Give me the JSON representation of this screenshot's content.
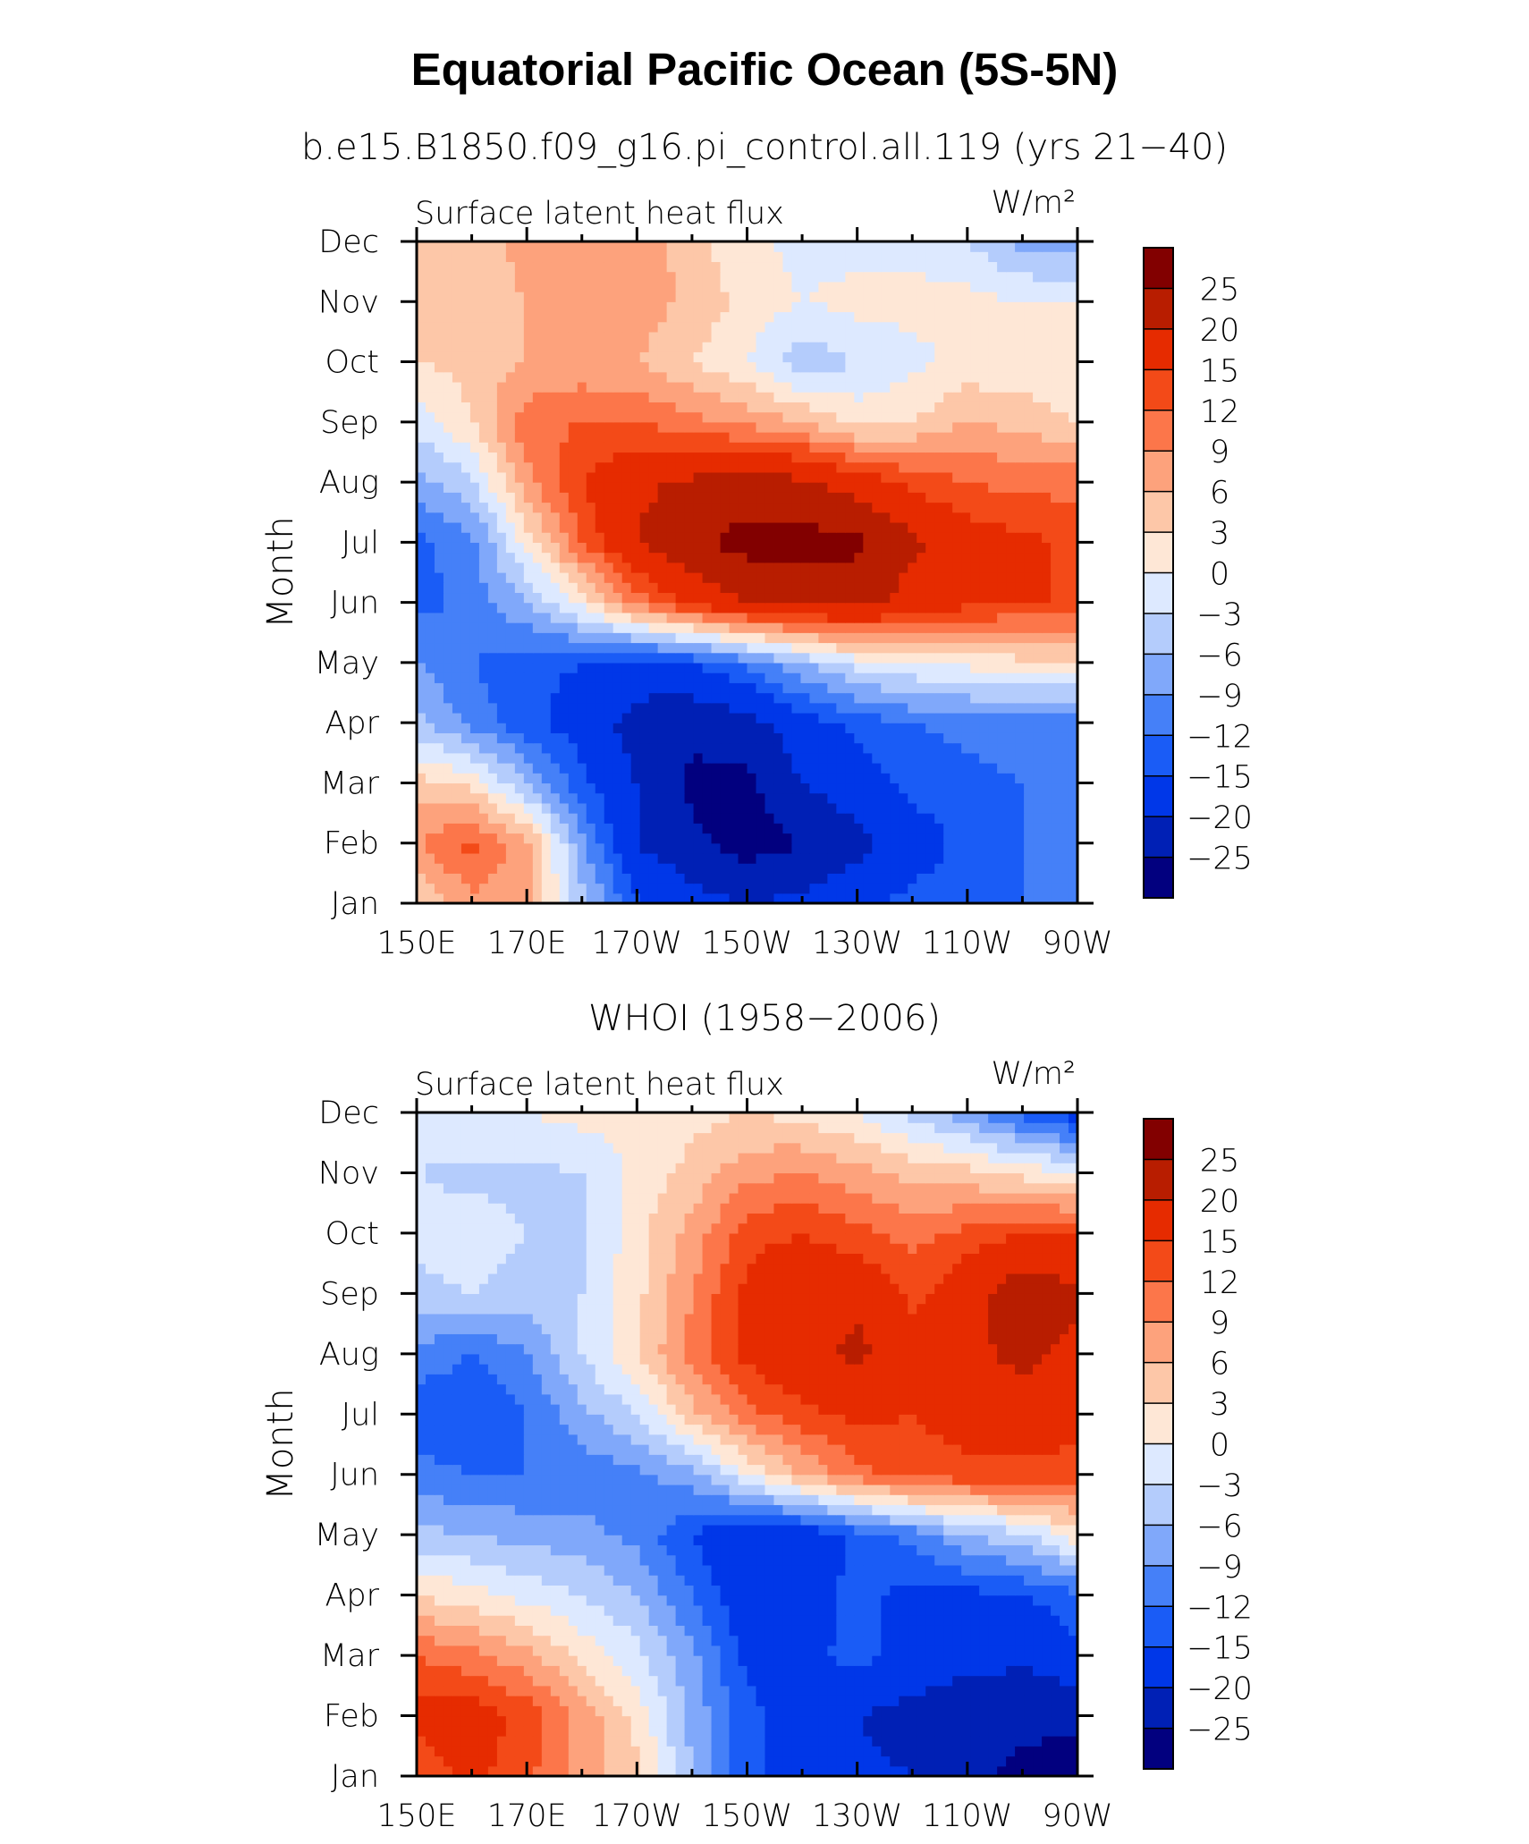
{
  "figure": {
    "title": "Equatorial Pacific Ocean (5S-5N)"
  },
  "chart_data": [
    {
      "type": "heatmap",
      "title": "b.e15.B1850.f09_g16.pi_control.all.119 (yrs 21−40)",
      "left_label": "Surface latent heat flux",
      "units": "W/m²",
      "ylabel": "Month",
      "xlabel": "",
      "x_ticks": [
        "150E",
        "170E",
        "170W",
        "150W",
        "130W",
        "110W",
        "90W"
      ],
      "y_ticks": [
        "Jan",
        "Feb",
        "Mar",
        "Apr",
        "May",
        "Jun",
        "Jul",
        "Aug",
        "Sep",
        "Oct",
        "Nov",
        "Dec"
      ],
      "x": [
        150,
        160,
        170,
        180,
        190,
        200,
        210,
        220,
        230,
        240,
        250,
        260,
        270
      ],
      "y": [
        1,
        2,
        3,
        4,
        5,
        6,
        7,
        8,
        9,
        10,
        11,
        12
      ],
      "z": [
        [
          3,
          8,
          7,
          -5,
          -14,
          -18,
          -20,
          -19,
          -16,
          -14,
          -13,
          -12,
          -12
        ],
        [
          9,
          13,
          7,
          -8,
          -20,
          -24,
          -27,
          -25,
          -22,
          -17,
          -14,
          -12,
          -12
        ],
        [
          4,
          2,
          -6,
          -14,
          -20,
          -26,
          -26,
          -20,
          -17,
          -14,
          -13,
          -12,
          -11
        ],
        [
          -5,
          -10,
          -14,
          -17,
          -22,
          -24,
          -22,
          -17,
          -14,
          -12,
          -11,
          -10,
          -10
        ],
        [
          -9,
          -12,
          -14,
          -15,
          -17,
          -15,
          -11,
          -6,
          -2,
          0,
          1,
          2,
          2
        ],
        [
          -13,
          -11,
          -6,
          1,
          10,
          16,
          20,
          21,
          22,
          18,
          16,
          15,
          15
        ],
        [
          -13,
          -10,
          1,
          12,
          20,
          24,
          27,
          27,
          26,
          21,
          17,
          16,
          14
        ],
        [
          -7,
          -4,
          8,
          15,
          19,
          21,
          22,
          21,
          18,
          14,
          12,
          11,
          11
        ],
        [
          -2,
          3,
          11,
          12,
          12,
          10,
          8,
          6,
          2,
          3,
          6,
          5,
          3
        ],
        [
          3,
          4,
          6,
          7,
          6,
          3,
          0,
          -5,
          -3,
          -1,
          1,
          1,
          0
        ],
        [
          5,
          5,
          6,
          7,
          8,
          5,
          2,
          0,
          1,
          1,
          1,
          0,
          0
        ],
        [
          4,
          4,
          7,
          8,
          9,
          4,
          1,
          -1,
          -1,
          -1,
          -3,
          -7,
          -8
        ]
      ],
      "levels": [
        -25,
        -20,
        -15,
        -12,
        -9,
        -6,
        -3,
        0,
        3,
        6,
        9,
        12,
        15,
        20,
        25
      ],
      "colorbar_labels": [
        "25",
        "20",
        "15",
        "12",
        "9",
        "6",
        "3",
        "0",
        "−3",
        "−6",
        "−9",
        "−12",
        "−15",
        "−20",
        "−25"
      ]
    },
    {
      "type": "heatmap",
      "title": "WHOI (1958−2006)",
      "left_label": "Surface latent heat flux",
      "units": "W/m²",
      "ylabel": "Month",
      "xlabel": "",
      "x_ticks": [
        "150E",
        "170E",
        "170W",
        "150W",
        "130W",
        "110W",
        "90W"
      ],
      "y_ticks": [
        "Jan",
        "Feb",
        "Mar",
        "Apr",
        "May",
        "Jun",
        "Jul",
        "Aug",
        "Sep",
        "Oct",
        "Nov",
        "Dec"
      ],
      "x": [
        150,
        160,
        170,
        180,
        190,
        200,
        210,
        220,
        230,
        240,
        250,
        260,
        270
      ],
      "y": [
        1,
        2,
        3,
        4,
        5,
        6,
        7,
        8,
        9,
        10,
        11,
        12
      ],
      "z": [
        [
          13,
          16,
          13,
          7,
          4,
          -6,
          -14,
          -17,
          -19,
          -20,
          -24,
          -26,
          -27
        ],
        [
          16,
          17,
          14,
          8,
          2,
          -7,
          -14,
          -17,
          -20,
          -22,
          -24,
          -24,
          -24
        ],
        [
          12,
          10,
          7,
          2,
          -2,
          -8,
          -16,
          -16,
          -14,
          -16,
          -18,
          -19,
          -16
        ],
        [
          3,
          1,
          -1,
          -3,
          -6,
          -12,
          -18,
          -17,
          -14,
          -16,
          -16,
          -15,
          -13
        ],
        [
          -5,
          -6,
          -7,
          -8,
          -10,
          -15,
          -20,
          -18,
          -14,
          -11,
          -6,
          -4,
          2
        ],
        [
          -11,
          -12,
          -12,
          -11,
          -10,
          -7,
          0,
          6,
          11,
          13,
          14,
          14,
          13
        ],
        [
          -14,
          -15,
          -12,
          -7,
          -3,
          5,
          11,
          14,
          16,
          15,
          17,
          18,
          17
        ],
        [
          -10,
          -12,
          -9,
          -3,
          3,
          10,
          16,
          19,
          21,
          17,
          19,
          21,
          19
        ],
        [
          -4,
          -3,
          -5,
          -3,
          2,
          9,
          16,
          18,
          19,
          14,
          18,
          23,
          21
        ],
        [
          -2,
          -1,
          -3,
          -4,
          2,
          7,
          14,
          15,
          13,
          11,
          13,
          15,
          15
        ],
        [
          -3,
          -4,
          -4,
          -3,
          1,
          4,
          8,
          9,
          7,
          5,
          4,
          2,
          0
        ],
        [
          -1,
          0,
          0,
          1,
          1,
          2,
          3,
          2,
          0,
          -4,
          -8,
          -13,
          -17
        ]
      ],
      "levels": [
        -25,
        -20,
        -15,
        -12,
        -9,
        -6,
        -3,
        0,
        3,
        6,
        9,
        12,
        15,
        20,
        25
      ],
      "colorbar_labels": [
        "25",
        "20",
        "15",
        "12",
        "9",
        "6",
        "3",
        "0",
        "−3",
        "−6",
        "−9",
        "−12",
        "−15",
        "−20",
        "−25"
      ]
    }
  ],
  "colors": {
    "palette": [
      "#02007f",
      "#0020b5",
      "#0037e8",
      "#1a5cf6",
      "#4580f8",
      "#80a8fa",
      "#b4ccfc",
      "#dde9ff",
      "#fee7d6",
      "#fdc7a8",
      "#fda27c",
      "#fc764a",
      "#f34a18",
      "#e62b00",
      "#b81d00",
      "#820000"
    ],
    "axis": "#000000"
  }
}
